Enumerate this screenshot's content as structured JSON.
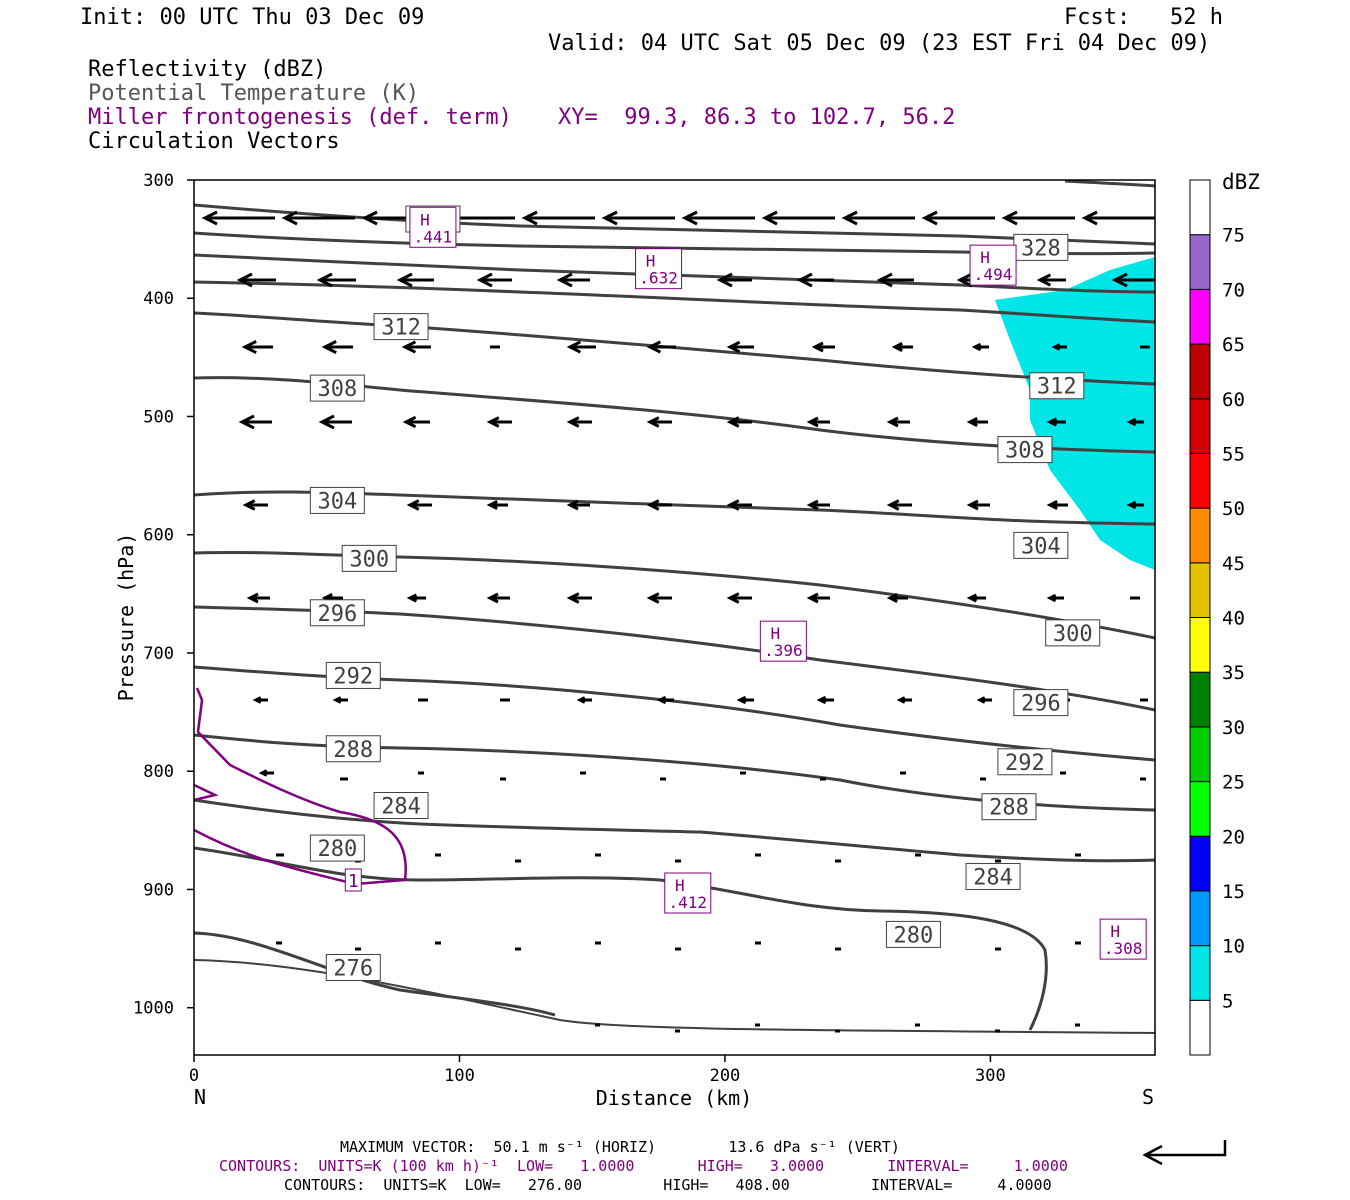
{
  "header": {
    "init": "Init: 00 UTC Thu 03 Dec 09",
    "fcst": "Fcst:   52 h",
    "valid": "Valid: 04 UTC Sat 05 Dec 09 (23 EST Fri 04 Dec 09)",
    "field1": "Reflectivity (dBZ)",
    "field2": "Potential Temperature (K)",
    "field3": "Miller frontogenesis (def. term)",
    "xy": "XY=  99.3, 86.3 to 102.7, 56.2",
    "field4": "Circulation Vectors"
  },
  "colors": {
    "theta": "#404040",
    "fronto": "#800080",
    "cyan": "#00e5e5"
  },
  "chart_data": {
    "type": "cross-section",
    "xlabel": "Distance (km)",
    "ylabel": "Pressure (hPa)",
    "xlim": [
      0,
      362
    ],
    "ylim": [
      300,
      1040
    ],
    "x_ticks": [
      "0",
      "100",
      "200",
      "300"
    ],
    "y_ticks": [
      "300",
      "400",
      "500",
      "600",
      "700",
      "800",
      "900",
      "1000"
    ],
    "x_end_labels": {
      "left": "N",
      "right": "S"
    },
    "theta_contours": [
      {
        "label": "276",
        "lx": 60,
        "lp": 966
      },
      {
        "label": "280",
        "lx": 54,
        "lp": 865
      },
      {
        "label": "280",
        "lx": 271,
        "lp": 938
      },
      {
        "label": "284",
        "lx": 78,
        "lp": 829
      },
      {
        "label": "284",
        "lx": 301,
        "lp": 889
      },
      {
        "label": "288",
        "lx": 60,
        "lp": 781
      },
      {
        "label": "288",
        "lx": 307,
        "lp": 830
      },
      {
        "label": "292",
        "lx": 60,
        "lp": 719
      },
      {
        "label": "292",
        "lx": 313,
        "lp": 792
      },
      {
        "label": "296",
        "lx": 54,
        "lp": 666
      },
      {
        "label": "296",
        "lx": 319,
        "lp": 742
      },
      {
        "label": "300",
        "lx": 66,
        "lp": 620
      },
      {
        "label": "300",
        "lx": 331,
        "lp": 683
      },
      {
        "label": "304",
        "lx": 54,
        "lp": 571
      },
      {
        "label": "304",
        "lx": 319,
        "lp": 609
      },
      {
        "label": "308",
        "lx": 54,
        "lp": 476
      },
      {
        "label": "308",
        "lx": 313,
        "lp": 528
      },
      {
        "label": "312",
        "lx": 78,
        "lp": 424
      },
      {
        "label": "312",
        "lx": 325,
        "lp": 474
      },
      {
        "label": "328",
        "lx": 319,
        "lp": 357
      },
      {
        "label": "328",
        "lx": 90,
        "lp": 333
      }
    ],
    "fronto_contours": [
      {
        "label": "1",
        "lx": 60,
        "lp": 892
      }
    ],
    "fronto_maxima": [
      {
        "label": "H",
        "value": ".441",
        "x": 90,
        "p": 340
      },
      {
        "label": "H",
        "value": ".632",
        "x": 175,
        "p": 375
      },
      {
        "label": "H",
        "value": ".494",
        "x": 301,
        "p": 372
      },
      {
        "label": "H",
        "value": ".396",
        "x": 222,
        "p": 690
      },
      {
        "label": "H",
        "value": ".412",
        "x": 186,
        "p": 903
      },
      {
        "label": "H",
        "value": ".308",
        "x": 350,
        "p": 942
      }
    ],
    "colorbar": {
      "title": "dBZ",
      "labels": [
        "5",
        "10",
        "15",
        "20",
        "25",
        "30",
        "35",
        "40",
        "45",
        "50",
        "55",
        "60",
        "65",
        "70",
        "75"
      ],
      "colors": [
        "#00e5e5",
        "#0099ff",
        "#0000ff",
        "#00ff00",
        "#00cc00",
        "#008000",
        "#ffff00",
        "#e5bf00",
        "#ff8c00",
        "#ff0000",
        "#d40000",
        "#bf0000",
        "#ff00ff",
        "#9966cc",
        "#ffffff"
      ]
    }
  },
  "footer": {
    "max_vector": "MAXIMUM VECTOR:  50.1 m s⁻¹ (HORIZ)        13.6 dPa s⁻¹ (VERT)",
    "contours1": "CONTOURS:  UNITS=K (100 km h)⁻¹  LOW=   1.0000       HIGH=   3.0000       INTERVAL=     1.0000",
    "contours2": "CONTOURS:  UNITS=K  LOW=   276.00         HIGH=   408.00         INTERVAL=     4.0000"
  }
}
